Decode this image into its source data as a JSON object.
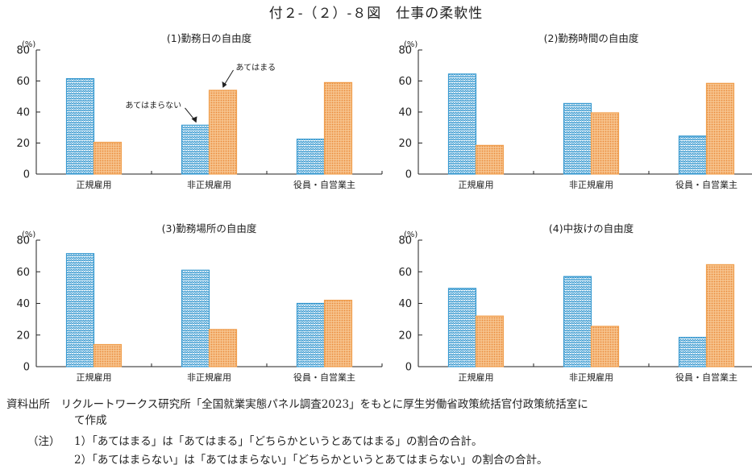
{
  "title": "付２-（２）-８図　仕事の柔軟性",
  "categories": [
    "正規雇用",
    "非正規雇用",
    "役員・自営業主"
  ],
  "colors": {
    "yes": "#f0a050",
    "no": "#3a9ad0",
    "axis": "#222222"
  },
  "annotations": {
    "yes": "あてはまる",
    "no": "あてはまらない"
  },
  "chart_data": [
    {
      "type": "bar",
      "title": "(1)勤務日の自由度",
      "ylabel": "(%)",
      "ylim": [
        0,
        80
      ],
      "yticks": [
        0,
        20,
        40,
        60,
        80
      ],
      "categories": [
        "正規雇用",
        "非正規雇用",
        "役員・自営業主"
      ],
      "series": [
        {
          "name": "あてはまらない",
          "values": [
            61.5,
            31.5,
            22.5
          ]
        },
        {
          "name": "あてはまる",
          "values": [
            20.5,
            54,
            59
          ]
        }
      ]
    },
    {
      "type": "bar",
      "title": "(2)勤務時間の自由度",
      "ylabel": "(%)",
      "ylim": [
        0,
        80
      ],
      "yticks": [
        0,
        20,
        40,
        60,
        80
      ],
      "categories": [
        "正規雇用",
        "非正規雇用",
        "役員・自営業主"
      ],
      "series": [
        {
          "values": [
            64.5,
            45.5,
            24.5
          ]
        },
        {
          "values": [
            18.5,
            39.5,
            58.5
          ]
        }
      ]
    },
    {
      "type": "bar",
      "title": "(3)勤務場所の自由度",
      "ylabel": "(%)",
      "ylim": [
        0,
        80
      ],
      "yticks": [
        0,
        20,
        40,
        60,
        80
      ],
      "categories": [
        "正規雇用",
        "非正規雇用",
        "役員・自営業主"
      ],
      "series": [
        {
          "values": [
            71.5,
            61,
            40
          ]
        },
        {
          "values": [
            14,
            23.5,
            42
          ]
        }
      ]
    },
    {
      "type": "bar",
      "title": "(4)中抜けの自由度",
      "ylabel": "(%)",
      "ylim": [
        0,
        80
      ],
      "yticks": [
        0,
        20,
        40,
        60,
        80
      ],
      "categories": [
        "正規雇用",
        "非正規雇用",
        "役員・自営業主"
      ],
      "series": [
        {
          "values": [
            49.5,
            57,
            18.5
          ]
        },
        {
          "values": [
            32,
            25.5,
            64.5
          ]
        }
      ]
    }
  ],
  "source": {
    "line1": "資料出所　リクルートワークス研究所「全国就業実態パネル調査2023」をもとに厚生労働省政策統括官付政策統括室にて作成",
    "note_label": "（注）",
    "note1": "1）「あてはまる」は「あてはまる」「どちらかというとあてはまる」の割合の合計。",
    "note2": "2）「あてはまらない」は「あてはまらない」「どちらかというとあてはまらない」の割合の合計。"
  }
}
